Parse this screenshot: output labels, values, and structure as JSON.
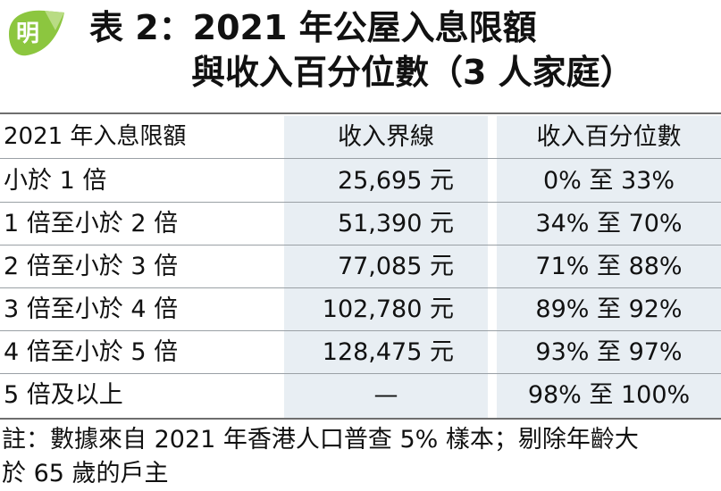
{
  "logo": {
    "char": "明"
  },
  "title": {
    "line1": "表 2：2021 年公屋入息限額",
    "line2": "與收入百分位數（3 人家庭）"
  },
  "table": {
    "headers": [
      "2021 年入息限額",
      "收入界線",
      "收入百分位數"
    ],
    "rows": [
      [
        "小於 1 倍",
        "25,695 元",
        "0% 至 33%"
      ],
      [
        "1 倍至小於 2 倍",
        "51,390 元",
        "34% 至 70%"
      ],
      [
        "2 倍至小於 3 倍",
        "77,085 元",
        "71% 至 88%"
      ],
      [
        "3 倍至小於 4 倍",
        "102,780 元",
        "89% 至 92%"
      ],
      [
        "4 倍至小於 5 倍",
        "128,475 元",
        "93% 至 97%"
      ],
      [
        "5 倍及以上",
        "—",
        "98% 至 100%"
      ]
    ]
  },
  "note": {
    "line1": "註：數據來自 2021 年香港人口普查 5% 樣本；剔除年齡大",
    "line2": "於 65 歲的戶主"
  },
  "colors": {
    "logo_green": "#8cc63f",
    "column_shade": "#e8eef3",
    "rule": "#6e6e6e"
  }
}
